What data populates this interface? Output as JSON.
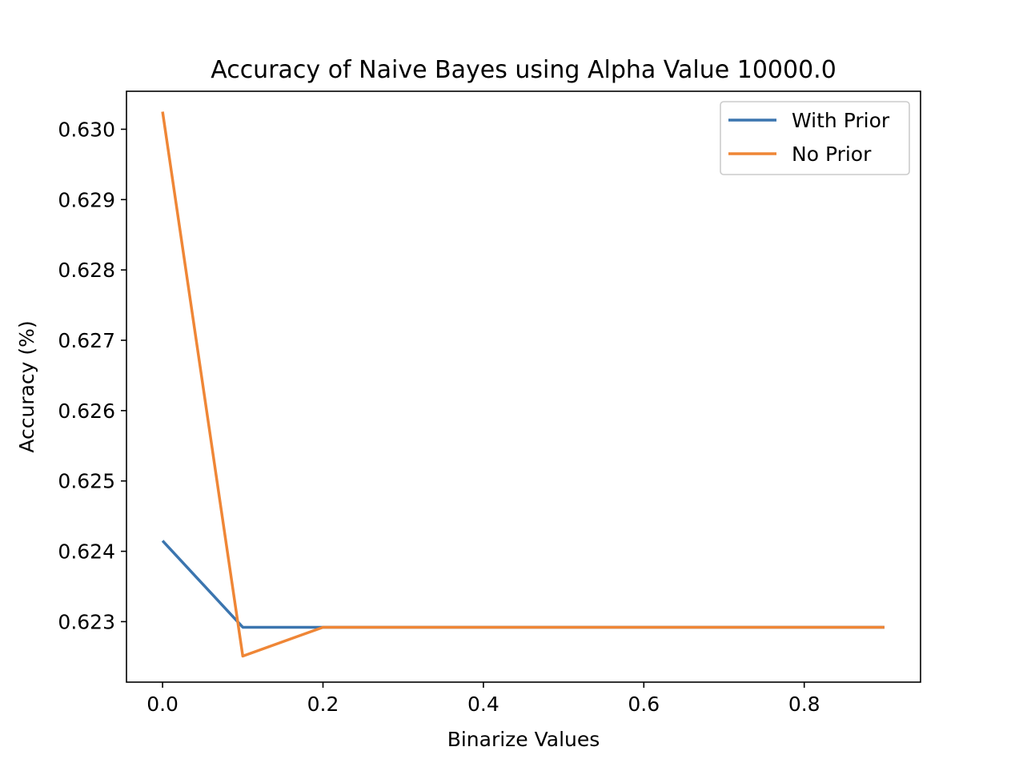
{
  "chart_data": {
    "type": "line",
    "title": "Accuracy of Naive Bayes using Alpha Value 10000.0",
    "xlabel": "Binarize Values",
    "ylabel": "Accuracy (%)",
    "x": [
      0.0,
      0.1,
      0.2,
      0.3,
      0.4,
      0.5,
      0.6,
      0.7,
      0.8,
      0.9
    ],
    "xlim": [
      -0.045,
      0.945
    ],
    "ylim": [
      0.62214,
      0.63054
    ],
    "xticks": [
      0.0,
      0.2,
      0.4,
      0.6,
      0.8
    ],
    "xtick_labels": [
      "0.0",
      "0.2",
      "0.4",
      "0.6",
      "0.8"
    ],
    "yticks": [
      0.623,
      0.624,
      0.625,
      0.626,
      0.627,
      0.628,
      0.629,
      0.63
    ],
    "ytick_labels": [
      "0.623",
      "0.624",
      "0.625",
      "0.626",
      "0.627",
      "0.628",
      "0.629",
      "0.630"
    ],
    "grid": false,
    "legend_position": "top-right",
    "series": [
      {
        "name": "With Prior",
        "color": "#3b75af",
        "values": [
          0.62415,
          0.62292,
          0.62292,
          0.62292,
          0.62292,
          0.62292,
          0.62292,
          0.62292,
          0.62292,
          0.62292
        ]
      },
      {
        "name": "No Prior",
        "color": "#ef8636",
        "values": [
          0.63025,
          0.62251,
          0.62292,
          0.62292,
          0.62292,
          0.62292,
          0.62292,
          0.62292,
          0.62292,
          0.62292
        ]
      }
    ]
  }
}
